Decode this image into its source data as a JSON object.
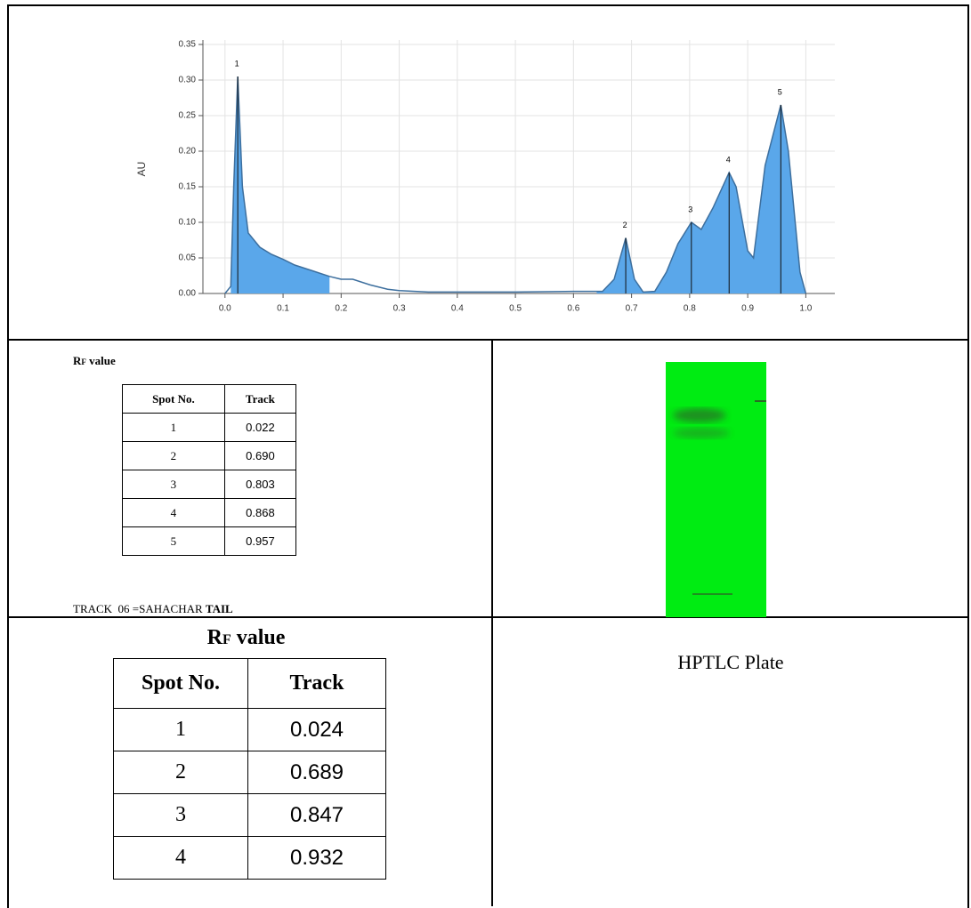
{
  "chart_data": {
    "type": "area",
    "ylabel": "AU",
    "x": [
      0.0,
      0.01,
      0.015,
      0.022,
      0.03,
      0.04,
      0.06,
      0.08,
      0.1,
      0.12,
      0.15,
      0.18,
      0.2,
      0.22,
      0.25,
      0.28,
      0.3,
      0.35,
      0.4,
      0.5,
      0.6,
      0.65,
      0.67,
      0.69,
      0.705,
      0.72,
      0.74,
      0.76,
      0.78,
      0.803,
      0.82,
      0.84,
      0.868,
      0.88,
      0.9,
      0.91,
      0.93,
      0.957,
      0.97,
      0.99,
      1.0
    ],
    "values": [
      0,
      0.01,
      0.15,
      0.305,
      0.15,
      0.085,
      0.065,
      0.055,
      0.048,
      0.04,
      0.032,
      0.024,
      0.02,
      0.02,
      0.012,
      0.006,
      0.004,
      0.002,
      0.002,
      0.002,
      0.003,
      0.003,
      0.02,
      0.078,
      0.02,
      0.002,
      0.003,
      0.03,
      0.07,
      0.1,
      0.09,
      0.12,
      0.17,
      0.15,
      0.06,
      0.05,
      0.18,
      0.265,
      0.2,
      0.03,
      0
    ],
    "color": "#5aa7ea",
    "line_color": "#3d6f9e",
    "fill_ranges": [
      [
        0.01,
        0.18
      ],
      [
        0.64,
        1.0
      ]
    ],
    "peaks": [
      {
        "label": "1",
        "x": 0.022,
        "value": 0.305
      },
      {
        "label": "2",
        "x": 0.69,
        "value": 0.078
      },
      {
        "label": "3",
        "x": 0.803,
        "value": 0.1
      },
      {
        "label": "4",
        "x": 0.868,
        "value": 0.17
      },
      {
        "label": "5",
        "x": 0.957,
        "value": 0.265
      }
    ],
    "xlim": [
      -0.038,
      1.05
    ],
    "ylim": [
      0,
      0.35
    ],
    "xticks": [
      {
        "value": 0,
        "label": "0.0"
      },
      0.1,
      0.2,
      0.3,
      0.4,
      0.5,
      0.6,
      0.7,
      0.8,
      0.9,
      {
        "value": 1,
        "label": "1.0"
      }
    ],
    "yticks": [
      {
        "value": 0,
        "label": "0.00"
      },
      0.05,
      {
        "value": 0.1,
        "label": "0.10"
      },
      0.15,
      {
        "value": 0.2,
        "label": "0.20"
      },
      0.25,
      {
        "value": 0.3,
        "label": "0.30"
      },
      0.35
    ],
    "grid": true
  },
  "table1": {
    "caption_main": "R",
    "caption_sub": "F",
    "caption_rest": " value",
    "header": [
      "Spot No.",
      "Track"
    ],
    "rows": [
      [
        "1",
        "0.022"
      ],
      [
        "2",
        "0.690"
      ],
      [
        "3",
        "0.803"
      ],
      [
        "4",
        "0.868"
      ],
      [
        "5",
        "0.957"
      ]
    ],
    "footer": "TRACK  06 =SAHACHAR ",
    "footer_bold": "TAIL"
  },
  "table2": {
    "caption_main": "R",
    "caption_sub": "F",
    "caption_rest": " value",
    "header": [
      "Spot No.",
      "Track"
    ],
    "rows": [
      [
        "1",
        "0.024"
      ],
      [
        "2",
        "0.689"
      ],
      [
        "3",
        "0.847"
      ],
      [
        "4",
        "0.932"
      ]
    ]
  },
  "plate_label": "HPTLC Plate"
}
